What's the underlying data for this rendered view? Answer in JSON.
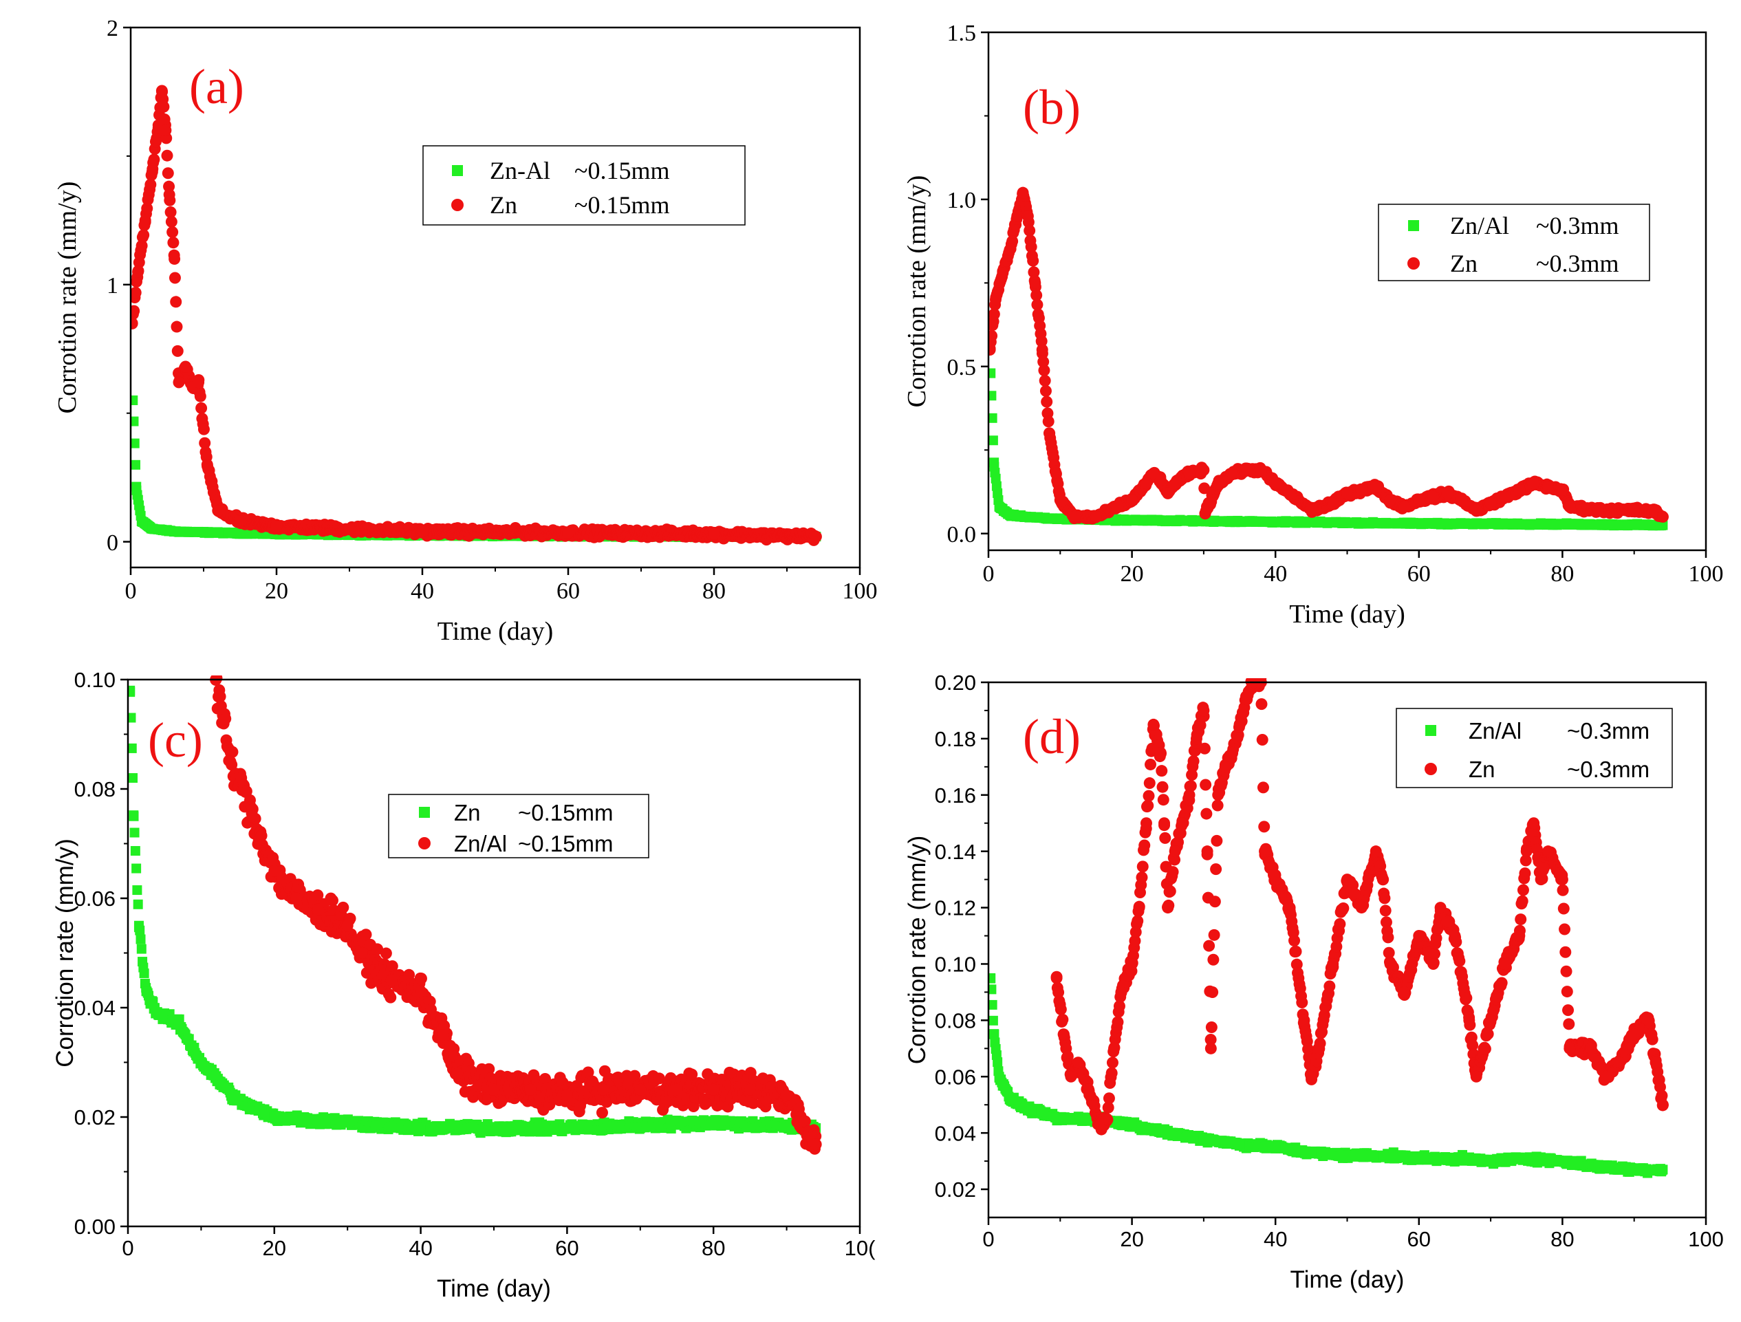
{
  "colors": {
    "green": "#22ee22",
    "red": "#ee1111",
    "axis": "#000000"
  },
  "chart_data": [
    {
      "panel_label": "(a)",
      "type": "scatter",
      "xlabel": "Time (day)",
      "ylabel": "Corrotion rate (mm/y)",
      "xlim": [
        0,
        100
      ],
      "ylim": [
        -0.1,
        2
      ],
      "x_ticks": [
        "0",
        "20",
        "40",
        "60",
        "80",
        "100"
      ],
      "y_ticks": [
        "0",
        "1",
        "2"
      ],
      "legend": [
        {
          "marker": "square",
          "color": "#22ee22",
          "name": "Zn-Al",
          "note": "~0.15mm"
        },
        {
          "marker": "circle",
          "color": "#ee1111",
          "name": "Zn",
          "note": "~0.15mm"
        }
      ],
      "series": [
        {
          "name": "Zn-Al ~0.15mm",
          "marker": "square",
          "color": "#22ee22",
          "noise": 0.004,
          "points": [
            [
              0.3,
              0.55
            ],
            [
              0.8,
              0.2
            ],
            [
              1.5,
              0.08
            ],
            [
              3,
              0.05
            ],
            [
              6,
              0.04
            ],
            [
              12,
              0.035
            ],
            [
              20,
              0.03
            ],
            [
              40,
              0.025
            ],
            [
              60,
              0.022
            ],
            [
              80,
              0.02
            ],
            [
              94,
              0.02
            ]
          ]
        },
        {
          "name": "Zn ~0.15mm",
          "marker": "circle",
          "color": "#ee1111",
          "noise": 0.02,
          "points": [
            [
              0.2,
              0.85
            ],
            [
              1,
              1.05
            ],
            [
              2,
              1.25
            ],
            [
              3,
              1.45
            ],
            [
              3.8,
              1.62
            ],
            [
              4.3,
              1.75
            ],
            [
              4.8,
              1.6
            ],
            [
              5.3,
              1.35
            ],
            [
              6,
              1.1
            ],
            [
              6.6,
              0.62
            ],
            [
              7.5,
              0.68
            ],
            [
              8.5,
              0.6
            ],
            [
              9.3,
              0.62
            ],
            [
              10.5,
              0.3
            ],
            [
              12,
              0.12
            ],
            [
              15,
              0.08
            ],
            [
              20,
              0.06
            ],
            [
              30,
              0.05
            ],
            [
              40,
              0.04
            ],
            [
              60,
              0.035
            ],
            [
              80,
              0.03
            ],
            [
              94,
              0.02
            ]
          ]
        }
      ]
    },
    {
      "panel_label": "(b)",
      "type": "scatter",
      "xlabel": "Time (day)",
      "ylabel": "Corrotion rate (mm/y)",
      "xlim": [
        0,
        100
      ],
      "ylim": [
        -0.05,
        1.5
      ],
      "x_ticks": [
        "0",
        "20",
        "40",
        "60",
        "80",
        "100"
      ],
      "y_ticks": [
        "0.0",
        "0.5",
        "1.0",
        "1.5"
      ],
      "legend": [
        {
          "marker": "square",
          "color": "#22ee22",
          "name": "Zn/Al",
          "note": "~0.3mm"
        },
        {
          "marker": "circle",
          "color": "#ee1111",
          "name": "Zn",
          "note": "~0.3mm"
        }
      ],
      "series": [
        {
          "name": "Zn/Al ~0.3mm",
          "marker": "square",
          "color": "#22ee22",
          "noise": 0.004,
          "points": [
            [
              0.3,
              0.48
            ],
            [
              0.8,
              0.2
            ],
            [
              1.5,
              0.08
            ],
            [
              3,
              0.055
            ],
            [
              8,
              0.045
            ],
            [
              20,
              0.04
            ],
            [
              40,
              0.035
            ],
            [
              60,
              0.03
            ],
            [
              80,
              0.028
            ],
            [
              94,
              0.025
            ]
          ]
        },
        {
          "name": "Zn ~0.3mm",
          "marker": "circle",
          "color": "#ee1111",
          "noise": 0.012,
          "points": [
            [
              0.2,
              0.55
            ],
            [
              1,
              0.7
            ],
            [
              2,
              0.78
            ],
            [
              3,
              0.85
            ],
            [
              4,
              0.95
            ],
            [
              4.8,
              1.02
            ],
            [
              5.5,
              0.95
            ],
            [
              6.5,
              0.75
            ],
            [
              7.5,
              0.55
            ],
            [
              8.5,
              0.3
            ],
            [
              10,
              0.1
            ],
            [
              12,
              0.05
            ],
            [
              15,
              0.05
            ],
            [
              18,
              0.08
            ],
            [
              20,
              0.1
            ],
            [
              22,
              0.15
            ],
            [
              23,
              0.18
            ],
            [
              24,
              0.16
            ],
            [
              25,
              0.12
            ],
            [
              26,
              0.15
            ],
            [
              28,
              0.18
            ],
            [
              30,
              0.19
            ],
            [
              30.2,
              0.06
            ],
            [
              32,
              0.15
            ],
            [
              34,
              0.18
            ],
            [
              36,
              0.19
            ],
            [
              38,
              0.19
            ],
            [
              40,
              0.15
            ],
            [
              42,
              0.12
            ],
            [
              45,
              0.07
            ],
            [
              48,
              0.09
            ],
            [
              50,
              0.12
            ],
            [
              52,
              0.13
            ],
            [
              54,
              0.14
            ],
            [
              56,
              0.1
            ],
            [
              58,
              0.08
            ],
            [
              60,
              0.1
            ],
            [
              62,
              0.11
            ],
            [
              64,
              0.12
            ],
            [
              66,
              0.1
            ],
            [
              68,
              0.07
            ],
            [
              70,
              0.09
            ],
            [
              72,
              0.11
            ],
            [
              74,
              0.13
            ],
            [
              76,
              0.15
            ],
            [
              78,
              0.14
            ],
            [
              80,
              0.13
            ],
            [
              81,
              0.08
            ],
            [
              85,
              0.07
            ],
            [
              90,
              0.07
            ],
            [
              93,
              0.065
            ],
            [
              94,
              0.05
            ]
          ]
        }
      ]
    },
    {
      "panel_label": "(c)",
      "type": "scatter",
      "xlabel": "Time (day)",
      "ylabel": "Corrotion rate (mm/y)",
      "xlim": [
        0,
        100
      ],
      "ylim": [
        0,
        0.1
      ],
      "x_ticks": [
        "0",
        "20",
        "40",
        "60",
        "80",
        "10("
      ],
      "y_ticks": [
        "0.00",
        "0.02",
        "0.04",
        "0.06",
        "0.08",
        "0.10"
      ],
      "legend": [
        {
          "marker": "square",
          "color": "#22ee22",
          "name": "Zn",
          "note": "~0.15mm"
        },
        {
          "marker": "circle",
          "color": "#ee1111",
          "name": "Zn/Al",
          "note": "~0.15mm"
        }
      ],
      "series": [
        {
          "name": "Zn ~0.15mm",
          "marker": "square",
          "color": "#22ee22",
          "noise": 0.0012,
          "points": [
            [
              0.3,
              0.098
            ],
            [
              0.8,
              0.075
            ],
            [
              1.5,
              0.055
            ],
            [
              2.5,
              0.043
            ],
            [
              4,
              0.039
            ],
            [
              7,
              0.037
            ],
            [
              10,
              0.03
            ],
            [
              15,
              0.023
            ],
            [
              20,
              0.02
            ],
            [
              30,
              0.019
            ],
            [
              40,
              0.018
            ],
            [
              60,
              0.018
            ],
            [
              80,
              0.019
            ],
            [
              94,
              0.018
            ]
          ]
        },
        {
          "name": "Zn/Al ~0.15mm",
          "marker": "circle",
          "color": "#ee1111",
          "noise": 0.0045,
          "points": [
            [
              12,
              0.1
            ],
            [
              14,
              0.085
            ],
            [
              17,
              0.075
            ],
            [
              20,
              0.065
            ],
            [
              23,
              0.06
            ],
            [
              26,
              0.058
            ],
            [
              30,
              0.055
            ],
            [
              32,
              0.05
            ],
            [
              36,
              0.045
            ],
            [
              40,
              0.043
            ],
            [
              43,
              0.035
            ],
            [
              45,
              0.028
            ],
            [
              50,
              0.025
            ],
            [
              55,
              0.025
            ],
            [
              60,
              0.024
            ],
            [
              65,
              0.025
            ],
            [
              70,
              0.025
            ],
            [
              75,
              0.025
            ],
            [
              80,
              0.025
            ],
            [
              85,
              0.025
            ],
            [
              90,
              0.024
            ],
            [
              94,
              0.015
            ]
          ]
        }
      ]
    },
    {
      "panel_label": "(d)",
      "type": "scatter",
      "xlabel": "Time (day)",
      "ylabel": "Corrotion rate (mm/y)",
      "xlim": [
        0,
        100
      ],
      "ylim": [
        0.01,
        0.2
      ],
      "x_ticks": [
        "0",
        "20",
        "40",
        "60",
        "80",
        "100"
      ],
      "y_ticks": [
        "0.02",
        "0.04",
        "0.06",
        "0.08",
        "0.10",
        "0.12",
        "0.14",
        "0.16",
        "0.18",
        "0.20"
      ],
      "legend": [
        {
          "marker": "square",
          "color": "#22ee22",
          "name": "Zn/Al",
          "note": "~0.3mm"
        },
        {
          "marker": "circle",
          "color": "#ee1111",
          "name": "Zn",
          "note": "~0.3mm"
        }
      ],
      "series": [
        {
          "name": "Zn/Al ~0.3mm",
          "marker": "square",
          "color": "#22ee22",
          "noise": 0.0015,
          "points": [
            [
              0.3,
              0.095
            ],
            [
              0.8,
              0.075
            ],
            [
              1.5,
              0.06
            ],
            [
              3,
              0.052
            ],
            [
              6,
              0.048
            ],
            [
              10,
              0.045
            ],
            [
              15,
              0.045
            ],
            [
              20,
              0.043
            ],
            [
              25,
              0.04
            ],
            [
              30,
              0.038
            ],
            [
              35,
              0.036
            ],
            [
              40,
              0.035
            ],
            [
              45,
              0.033
            ],
            [
              50,
              0.032
            ],
            [
              55,
              0.032
            ],
            [
              60,
              0.031
            ],
            [
              65,
              0.031
            ],
            [
              70,
              0.03
            ],
            [
              75,
              0.031
            ],
            [
              80,
              0.03
            ],
            [
              85,
              0.028
            ],
            [
              90,
              0.027
            ],
            [
              94,
              0.027
            ]
          ]
        },
        {
          "name": "Zn ~0.3mm",
          "marker": "circle",
          "color": "#ee1111",
          "noise": 0.003,
          "points": [
            [
              9.5,
              0.095
            ],
            [
              10.5,
              0.075
            ],
            [
              11.5,
              0.06
            ],
            [
              12.5,
              0.065
            ],
            [
              14,
              0.055
            ],
            [
              15.5,
              0.043
            ],
            [
              16.5,
              0.045
            ],
            [
              17.5,
              0.07
            ],
            [
              18.5,
              0.09
            ],
            [
              20,
              0.1
            ],
            [
              21,
              0.12
            ],
            [
              22,
              0.15
            ],
            [
              23,
              0.185
            ],
            [
              24,
              0.175
            ],
            [
              24.5,
              0.15
            ],
            [
              25,
              0.12
            ],
            [
              26,
              0.14
            ],
            [
              27,
              0.15
            ],
            [
              28,
              0.16
            ],
            [
              29,
              0.18
            ],
            [
              30,
              0.19
            ],
            [
              30.5,
              0.14
            ],
            [
              31,
              0.07
            ],
            [
              32,
              0.16
            ],
            [
              33,
              0.17
            ],
            [
              34,
              0.175
            ],
            [
              35,
              0.185
            ],
            [
              36,
              0.195
            ],
            [
              37,
              0.2
            ],
            [
              38,
              0.2
            ],
            [
              38.5,
              0.14
            ],
            [
              40,
              0.13
            ],
            [
              42,
              0.12
            ],
            [
              44,
              0.08
            ],
            [
              45,
              0.06
            ],
            [
              46,
              0.07
            ],
            [
              48,
              0.1
            ],
            [
              50,
              0.13
            ],
            [
              51,
              0.125
            ],
            [
              52,
              0.12
            ],
            [
              54,
              0.14
            ],
            [
              55,
              0.13
            ],
            [
              56,
              0.1
            ],
            [
              58,
              0.09
            ],
            [
              60,
              0.11
            ],
            [
              62,
              0.1
            ],
            [
              63,
              0.12
            ],
            [
              64,
              0.115
            ],
            [
              65,
              0.11
            ],
            [
              67,
              0.08
            ],
            [
              68,
              0.06
            ],
            [
              70,
              0.08
            ],
            [
              72,
              0.1
            ],
            [
              74,
              0.11
            ],
            [
              75,
              0.14
            ],
            [
              76,
              0.15
            ],
            [
              77,
              0.13
            ],
            [
              78,
              0.14
            ],
            [
              80,
              0.13
            ],
            [
              81,
              0.07
            ],
            [
              84,
              0.07
            ],
            [
              86,
              0.06
            ],
            [
              88,
              0.065
            ],
            [
              90,
              0.075
            ],
            [
              92,
              0.08
            ],
            [
              93,
              0.065
            ],
            [
              94,
              0.05
            ]
          ]
        }
      ]
    }
  ]
}
